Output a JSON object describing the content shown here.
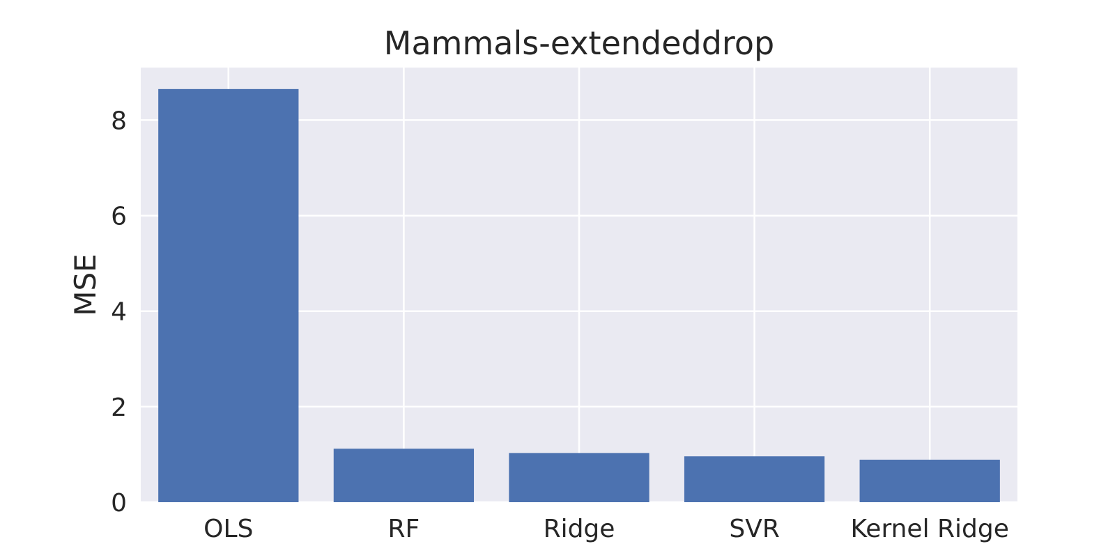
{
  "chart_data": {
    "type": "bar",
    "title": "Mammals-extendeddrop",
    "xlabel": "",
    "ylabel": "MSE",
    "categories": [
      "OLS",
      "RF",
      "Ridge",
      "SVR",
      "Kernel Ridge"
    ],
    "values": [
      8.65,
      1.12,
      1.03,
      0.96,
      0.89
    ],
    "ylim": [
      0,
      9.1
    ],
    "yticks": [
      0,
      2,
      4,
      6,
      8
    ],
    "grid": true,
    "legend": "none",
    "colors": {
      "bar": "#4c72b0",
      "plot_background": "#eaeaf2",
      "grid": "#ffffff",
      "text": "#262626"
    }
  }
}
